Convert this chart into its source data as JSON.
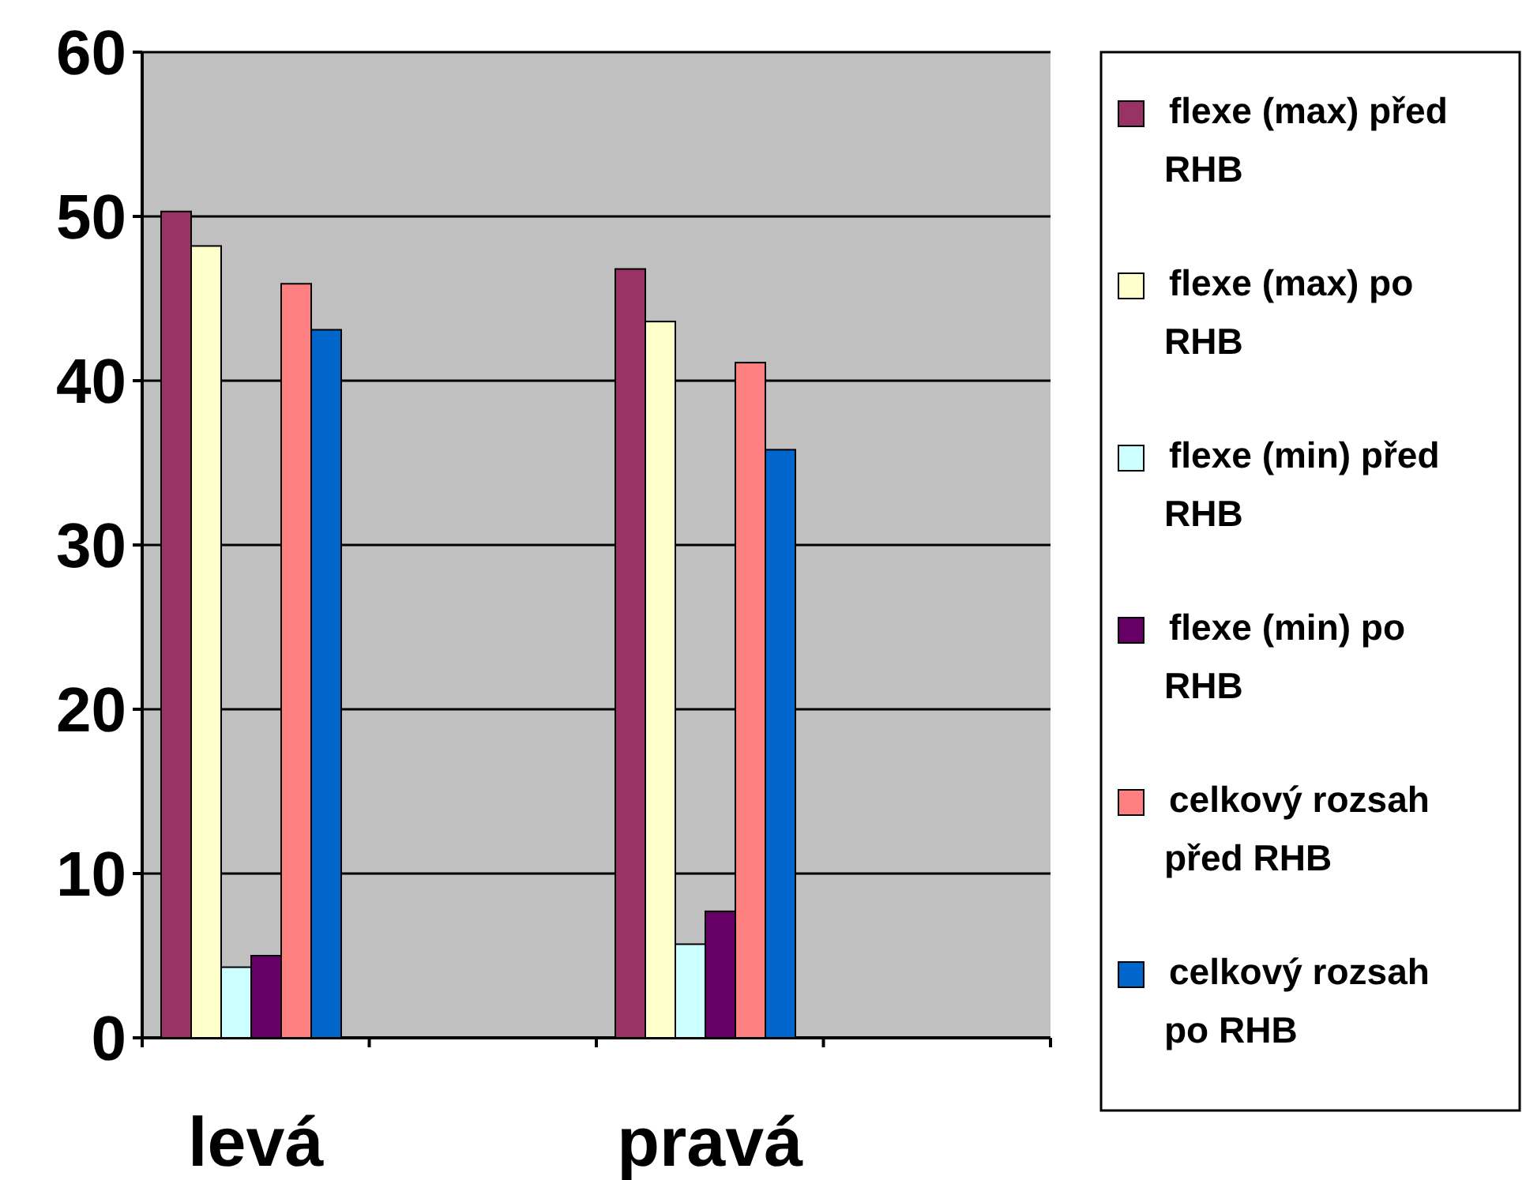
{
  "chart_data": {
    "type": "bar",
    "categories": [
      "levá",
      null,
      "pravá",
      null
    ],
    "series": [
      {
        "name": "flexe (max) před RHB",
        "color": "#993366",
        "values": [
          50.3,
          null,
          46.8,
          null
        ]
      },
      {
        "name": "flexe (max) po RHB",
        "color": "#ffffcc",
        "values": [
          48.2,
          null,
          43.6,
          null
        ]
      },
      {
        "name": "flexe (min) před RHB",
        "color": "#ccffff",
        "values": [
          4.3,
          null,
          5.7,
          null
        ]
      },
      {
        "name": "flexe (min) po RHB",
        "color": "#660066",
        "values": [
          5,
          null,
          7.7,
          null
        ]
      },
      {
        "name": "celkový rozsah před RHB",
        "color": "#ff8080",
        "values": [
          45.9,
          null,
          41.1,
          null
        ]
      },
      {
        "name": "celkový rozsah po RHB",
        "color": "#0066cc",
        "values": [
          43.1,
          null,
          35.8,
          null
        ]
      }
    ],
    "ylim": [
      0,
      60
    ],
    "yticks": [
      0,
      10,
      20,
      30,
      40,
      50,
      60
    ],
    "grid": "y",
    "legend": "right"
  }
}
